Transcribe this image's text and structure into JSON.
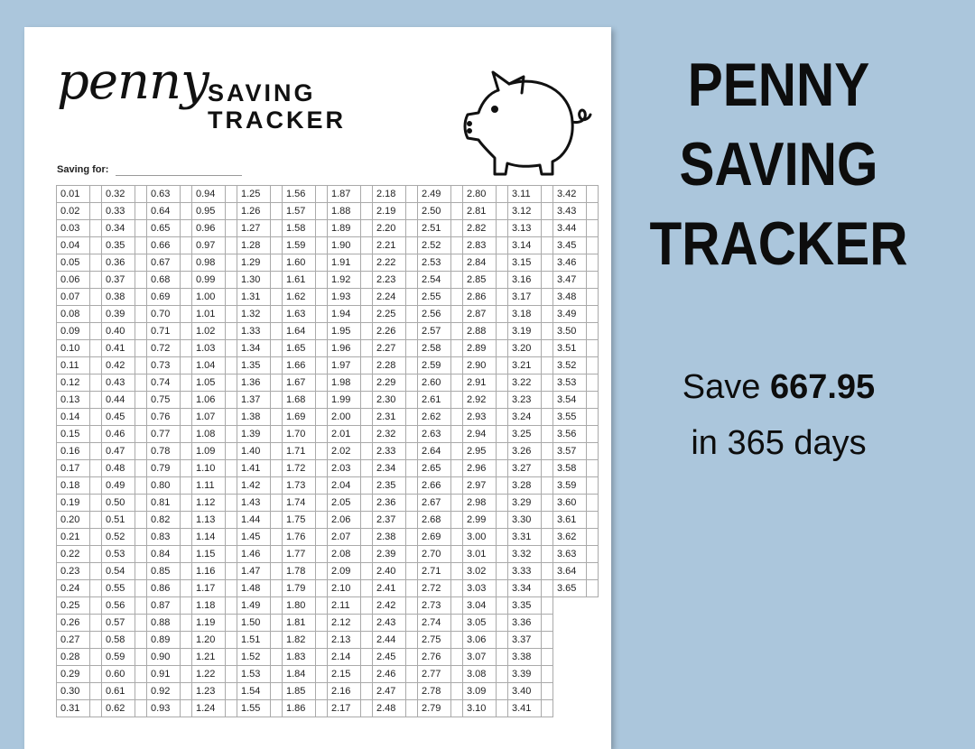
{
  "sheet": {
    "script_title": "penny",
    "title_line1": "SAVING",
    "title_line2": "TRACKER",
    "saving_for_label": "Saving for:",
    "icon": "piggy-bank-icon"
  },
  "tracker": {
    "columns": [
      [
        "0.01",
        "0.02",
        "0.03",
        "0.04",
        "0.05",
        "0.06",
        "0.07",
        "0.08",
        "0.09",
        "0.10",
        "0.11",
        "0.12",
        "0.13",
        "0.14",
        "0.15",
        "0.16",
        "0.17",
        "0.18",
        "0.19",
        "0.20",
        "0.21",
        "0.22",
        "0.23",
        "0.24",
        "0.25",
        "0.26",
        "0.27",
        "0.28",
        "0.29",
        "0.30",
        "0.31"
      ],
      [
        "0.32",
        "0.33",
        "0.34",
        "0.35",
        "0.36",
        "0.37",
        "0.38",
        "0.39",
        "0.40",
        "0.41",
        "0.42",
        "0.43",
        "0.44",
        "0.45",
        "0.46",
        "0.47",
        "0.48",
        "0.49",
        "0.50",
        "0.51",
        "0.52",
        "0.53",
        "0.54",
        "0.55",
        "0.56",
        "0.57",
        "0.58",
        "0.59",
        "0.60",
        "0.61",
        "0.62"
      ],
      [
        "0.63",
        "0.64",
        "0.65",
        "0.66",
        "0.67",
        "0.68",
        "0.69",
        "0.70",
        "0.71",
        "0.72",
        "0.73",
        "0.74",
        "0.75",
        "0.76",
        "0.77",
        "0.78",
        "0.79",
        "0.80",
        "0.81",
        "0.82",
        "0.83",
        "0.84",
        "0.85",
        "0.86",
        "0.87",
        "0.88",
        "0.89",
        "0.90",
        "0.91",
        "0.92",
        "0.93"
      ],
      [
        "0.94",
        "0.95",
        "0.96",
        "0.97",
        "0.98",
        "0.99",
        "1.00",
        "1.01",
        "1.02",
        "1.03",
        "1.04",
        "1.05",
        "1.06",
        "1.07",
        "1.08",
        "1.09",
        "1.10",
        "1.11",
        "1.12",
        "1.13",
        "1.14",
        "1.15",
        "1.16",
        "1.17",
        "1.18",
        "1.19",
        "1.20",
        "1.21",
        "1.22",
        "1.23",
        "1.24"
      ],
      [
        "1.25",
        "1.26",
        "1.27",
        "1.28",
        "1.29",
        "1.30",
        "1.31",
        "1.32",
        "1.33",
        "1.34",
        "1.35",
        "1.36",
        "1.37",
        "1.38",
        "1.39",
        "1.40",
        "1.41",
        "1.42",
        "1.43",
        "1.44",
        "1.45",
        "1.46",
        "1.47",
        "1.48",
        "1.49",
        "1.50",
        "1.51",
        "1.52",
        "1.53",
        "1.54",
        "1.55"
      ],
      [
        "1.56",
        "1.57",
        "1.58",
        "1.59",
        "1.60",
        "1.61",
        "1.62",
        "1.63",
        "1.64",
        "1.65",
        "1.66",
        "1.67",
        "1.68",
        "1.69",
        "1.70",
        "1.71",
        "1.72",
        "1.73",
        "1.74",
        "1.75",
        "1.76",
        "1.77",
        "1.78",
        "1.79",
        "1.80",
        "1.81",
        "1.82",
        "1.83",
        "1.84",
        "1.85",
        "1.86"
      ],
      [
        "1.87",
        "1.88",
        "1.89",
        "1.90",
        "1.91",
        "1.92",
        "1.93",
        "1.94",
        "1.95",
        "1.96",
        "1.97",
        "1.98",
        "1.99",
        "2.00",
        "2.01",
        "2.02",
        "2.03",
        "2.04",
        "2.05",
        "2.06",
        "2.07",
        "2.08",
        "2.09",
        "2.10",
        "2.11",
        "2.12",
        "2.13",
        "2.14",
        "2.15",
        "2.16",
        "2.17"
      ],
      [
        "2.18",
        "2.19",
        "2.20",
        "2.21",
        "2.22",
        "2.23",
        "2.24",
        "2.25",
        "2.26",
        "2.27",
        "2.28",
        "2.29",
        "2.30",
        "2.31",
        "2.32",
        "2.33",
        "2.34",
        "2.35",
        "2.36",
        "2.37",
        "2.38",
        "2.39",
        "2.40",
        "2.41",
        "2.42",
        "2.43",
        "2.44",
        "2.45",
        "2.46",
        "2.47",
        "2.48"
      ],
      [
        "2.49",
        "2.50",
        "2.51",
        "2.52",
        "2.53",
        "2.54",
        "2.55",
        "2.56",
        "2.57",
        "2.58",
        "2.59",
        "2.60",
        "2.61",
        "2.62",
        "2.63",
        "2.64",
        "2.65",
        "2.66",
        "2.67",
        "2.68",
        "2.69",
        "2.70",
        "2.71",
        "2.72",
        "2.73",
        "2.74",
        "2.75",
        "2.76",
        "2.77",
        "2.78",
        "2.79"
      ],
      [
        "2.80",
        "2.81",
        "2.82",
        "2.83",
        "2.84",
        "2.85",
        "2.86",
        "2.87",
        "2.88",
        "2.89",
        "2.90",
        "2.91",
        "2.92",
        "2.93",
        "2.94",
        "2.95",
        "2.96",
        "2.97",
        "2.98",
        "2.99",
        "3.00",
        "3.01",
        "3.02",
        "3.03",
        "3.04",
        "3.05",
        "3.06",
        "3.07",
        "3.08",
        "3.09",
        "3.10"
      ],
      [
        "3.11",
        "3.12",
        "3.13",
        "3.14",
        "3.15",
        "3.16",
        "3.17",
        "3.18",
        "3.19",
        "3.20",
        "3.21",
        "3.22",
        "3.23",
        "3.24",
        "3.25",
        "3.26",
        "3.27",
        "3.28",
        "3.29",
        "3.30",
        "3.31",
        "3.32",
        "3.33",
        "3.34",
        "3.35",
        "3.36",
        "3.37",
        "3.38",
        "3.39",
        "3.40",
        "3.41"
      ],
      [
        "3.42",
        "3.43",
        "3.44",
        "3.45",
        "3.46",
        "3.47",
        "3.48",
        "3.49",
        "3.50",
        "3.51",
        "3.52",
        "3.53",
        "3.54",
        "3.55",
        "3.56",
        "3.57",
        "3.58",
        "3.59",
        "3.60",
        "3.61",
        "3.62",
        "3.63",
        "3.64",
        "3.65"
      ]
    ]
  },
  "promo": {
    "headline": [
      "PENNY",
      "SAVING",
      "TRACKER"
    ],
    "save_prefix": "Save",
    "save_amount": "667.95",
    "save_suffix": "in 365 days"
  },
  "colors": {
    "background": "#abc6dc",
    "paper": "#ffffff",
    "text": "#0d0d0d"
  }
}
